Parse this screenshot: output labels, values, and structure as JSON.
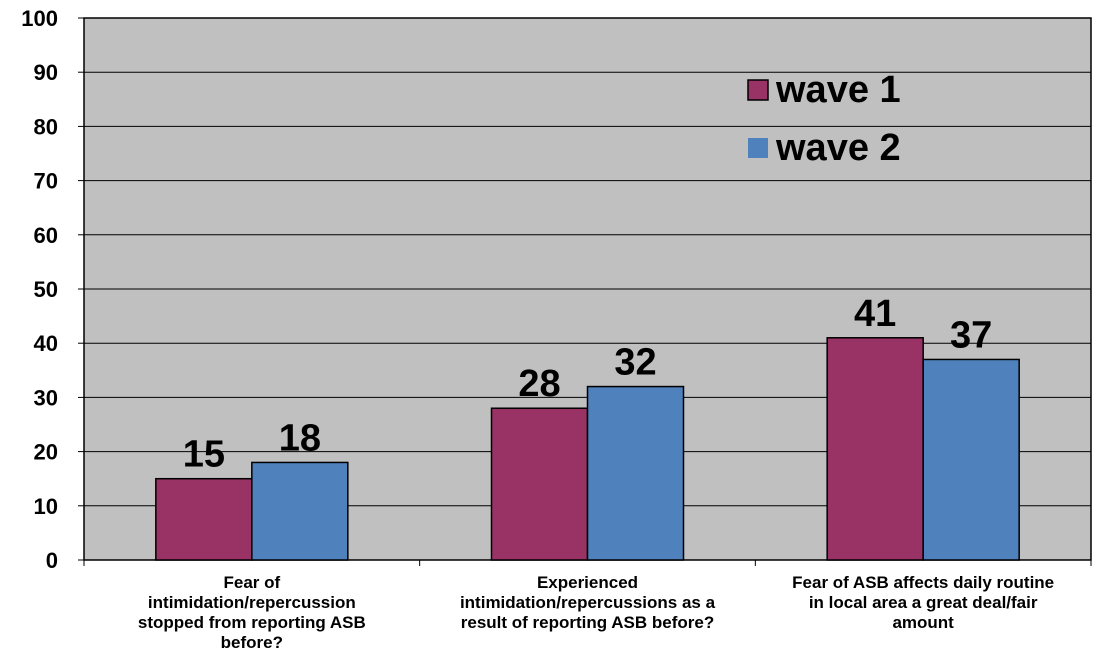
{
  "chart_data": {
    "type": "bar",
    "categories": [
      "Fear of intimidation/repercussion stopped from reporting ASB before?",
      "Experienced intimidation/repercussions as a result of reporting ASB before?",
      "Fear of ASB affects daily routine in local area a great deal/fair amount"
    ],
    "category_lines": [
      [
        "Fear of",
        "intimidation/repercussion",
        "stopped from reporting ASB",
        "before?"
      ],
      [
        "Experienced",
        "intimidation/repercussions as a",
        "result of reporting ASB before?"
      ],
      [
        "Fear of ASB affects daily routine",
        "in local area a great deal/fair",
        "amount"
      ]
    ],
    "series": [
      {
        "name": "wave 1",
        "values": [
          15,
          28,
          41
        ],
        "color": "#993366"
      },
      {
        "name": "wave 2",
        "values": [
          18,
          32,
          37
        ],
        "color": "#4F81BD"
      }
    ],
    "ylim": [
      0,
      100
    ],
    "yticks": [
      0,
      10,
      20,
      30,
      40,
      50,
      60,
      70,
      80,
      90,
      100
    ],
    "grid": true,
    "plot_background": "#C0C0C0",
    "legend_position": "top-right",
    "title": "",
    "xlabel": "",
    "ylabel": ""
  }
}
